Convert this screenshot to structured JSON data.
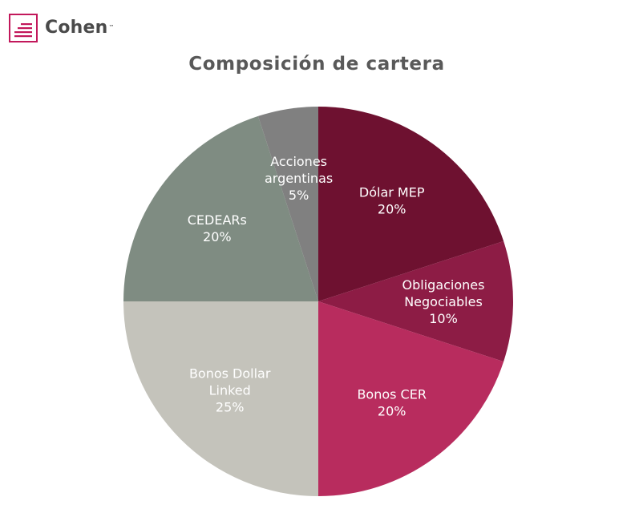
{
  "brand": {
    "name": "Cohen",
    "trademark": "™",
    "color": "#c2185b"
  },
  "chart_data": {
    "type": "pie",
    "title": "Composición de cartera",
    "start_angle_deg": 0,
    "direction": "clockwise",
    "slices": [
      {
        "label_lines": [
          "Dólar MEP"
        ],
        "value": 20,
        "value_label": "20%",
        "color": "#6e1130"
      },
      {
        "label_lines": [
          "Obligaciones",
          "Negociables"
        ],
        "value": 10,
        "value_label": "10%",
        "color": "#8d1c45"
      },
      {
        "label_lines": [
          "Bonos CER"
        ],
        "value": 20,
        "value_label": "20%",
        "color": "#b82c5e"
      },
      {
        "label_lines": [
          "Bonos Dollar",
          "Linked"
        ],
        "value": 25,
        "value_label": "25%",
        "color": "#c4c3bb"
      },
      {
        "label_lines": [
          "CEDEARs"
        ],
        "value": 20,
        "value_label": "20%",
        "color": "#7f8c82"
      },
      {
        "label_lines": [
          "Acciones",
          "argentinas"
        ],
        "value": 5,
        "value_label": "5%",
        "color": "#808080"
      }
    ]
  }
}
